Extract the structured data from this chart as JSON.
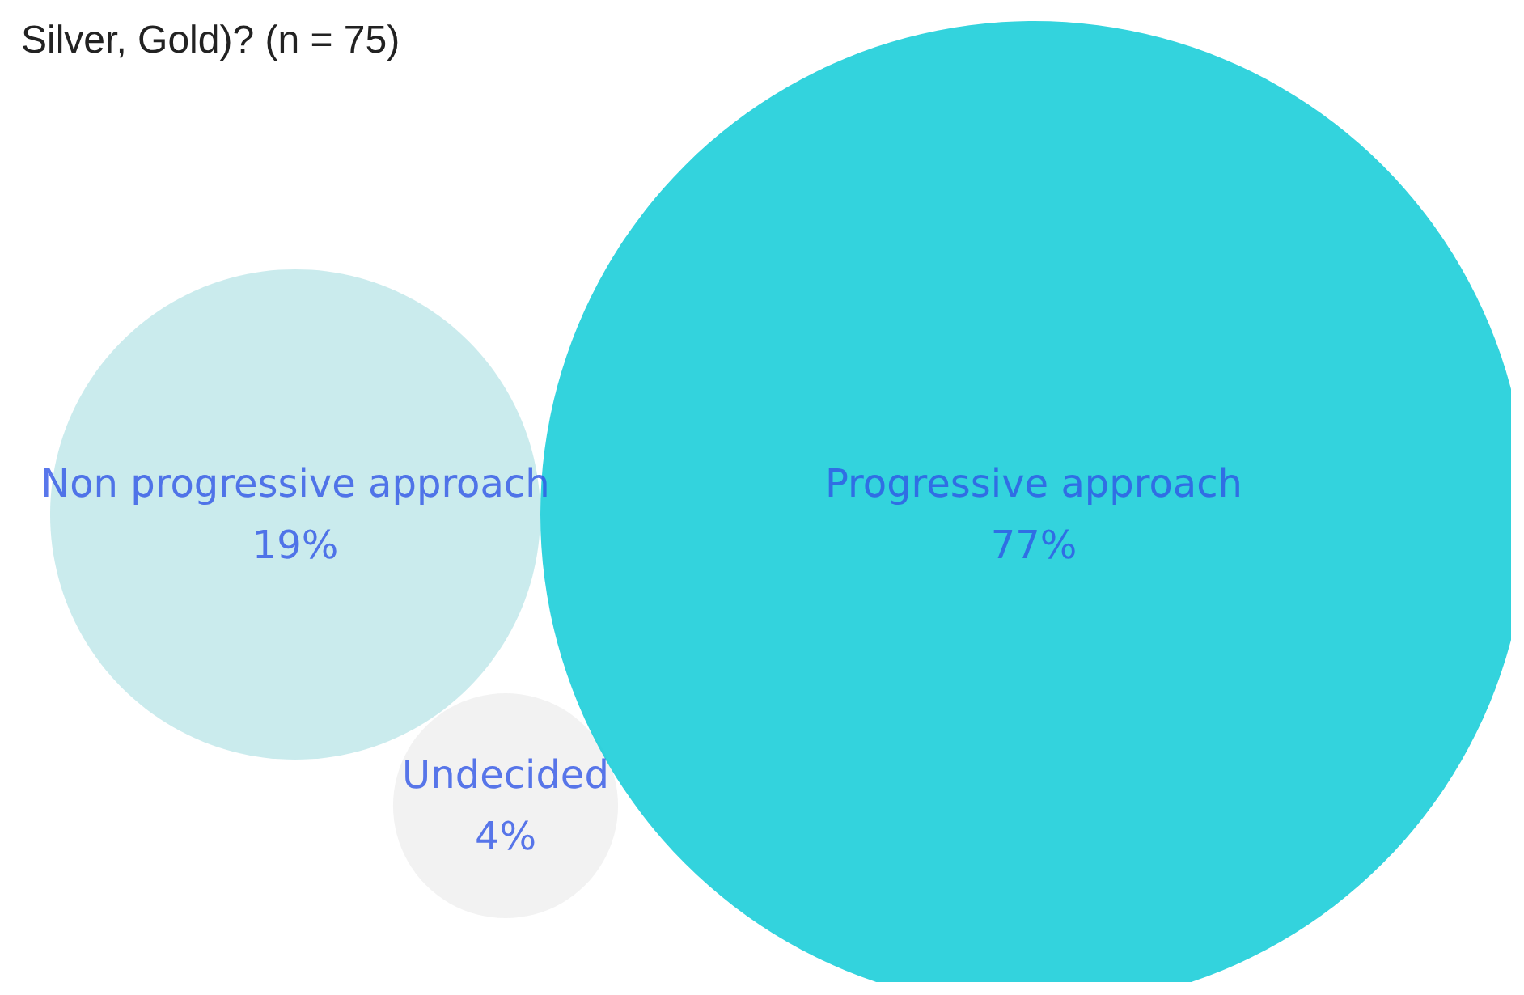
{
  "chart_data": {
    "type": "other",
    "title": "Silver, Gold)? (n = 75)",
    "categories": [
      "Non progressive approach",
      "Undecided",
      "Progressive approach"
    ],
    "values": [
      19,
      4,
      77
    ],
    "value_labels": [
      "19%",
      "4%",
      "77%"
    ],
    "colors": [
      "#bde6e9",
      "#efefef",
      "#00c8d4"
    ]
  }
}
